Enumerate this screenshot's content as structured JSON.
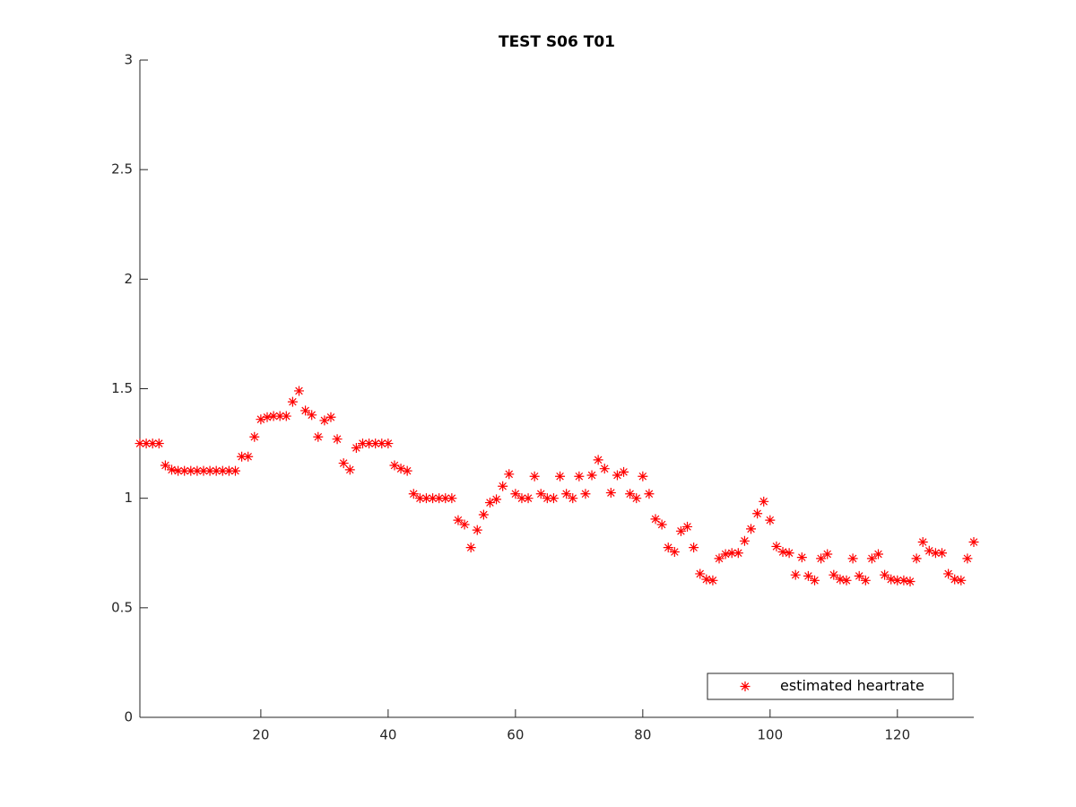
{
  "chart_data": {
    "type": "scatter",
    "title": "TEST S06 T01",
    "legend": "southeast",
    "box": false,
    "xlim": [
      1,
      132
    ],
    "xticks": [
      20,
      40,
      60,
      80,
      100,
      120
    ],
    "ylim": [
      0,
      3
    ],
    "yticks": [
      0,
      0.5,
      1,
      1.5,
      2,
      2.5,
      3
    ],
    "x": [
      1,
      2,
      3,
      4,
      5,
      6,
      7,
      8,
      9,
      10,
      11,
      12,
      13,
      14,
      15,
      16,
      17,
      18,
      19,
      20,
      21,
      22,
      23,
      24,
      25,
      26,
      27,
      28,
      29,
      30,
      31,
      32,
      33,
      34,
      35,
      36,
      37,
      38,
      39,
      40,
      41,
      42,
      43,
      44,
      45,
      46,
      47,
      48,
      49,
      50,
      51,
      52,
      53,
      54,
      55,
      56,
      57,
      58,
      59,
      60,
      61,
      62,
      63,
      64,
      65,
      66,
      67,
      68,
      69,
      70,
      71,
      72,
      73,
      74,
      75,
      76,
      77,
      78,
      79,
      80,
      81,
      82,
      83,
      84,
      85,
      86,
      87,
      88,
      89,
      90,
      91,
      92,
      93,
      94,
      95,
      96,
      97,
      98,
      99,
      100,
      101,
      102,
      103,
      104,
      105,
      106,
      107,
      108,
      109,
      110,
      111,
      112,
      113,
      114,
      115,
      116,
      117,
      118,
      119,
      120,
      121,
      122,
      123,
      124,
      125,
      126,
      127,
      128,
      129,
      130,
      131,
      132
    ],
    "series": [
      {
        "name": "estimated heartrate",
        "color": "#ff0000",
        "marker": "asterisk",
        "values": [
          1.25,
          1.25,
          1.25,
          1.25,
          1.15,
          1.13,
          1.125,
          1.125,
          1.125,
          1.125,
          1.125,
          1.125,
          1.125,
          1.125,
          1.125,
          1.125,
          1.19,
          1.19,
          1.28,
          1.36,
          1.37,
          1.375,
          1.375,
          1.375,
          1.44,
          1.49,
          1.4,
          1.38,
          1.28,
          1.355,
          1.37,
          1.27,
          1.16,
          1.13,
          1.23,
          1.25,
          1.25,
          1.25,
          1.25,
          1.25,
          1.15,
          1.135,
          1.125,
          1.02,
          1.0,
          1.0,
          1.0,
          1.0,
          1.0,
          1.0,
          0.9,
          0.88,
          0.775,
          0.855,
          0.925,
          0.98,
          0.995,
          1.055,
          1.11,
          1.02,
          1.0,
          1.0,
          1.1,
          1.02,
          1.0,
          1.0,
          1.1,
          1.02,
          1.0,
          1.1,
          1.02,
          1.105,
          1.175,
          1.135,
          1.025,
          1.105,
          1.12,
          1.02,
          1.0,
          1.1,
          1.02,
          0.905,
          0.88,
          0.775,
          0.755,
          0.85,
          0.87,
          0.775,
          0.655,
          0.63,
          0.625,
          0.725,
          0.745,
          0.75,
          0.75,
          0.805,
          0.86,
          0.93,
          0.985,
          0.9,
          0.78,
          0.755,
          0.75,
          0.65,
          0.73,
          0.645,
          0.625,
          0.725,
          0.745,
          0.65,
          0.63,
          0.625,
          0.725,
          0.645,
          0.625,
          0.725,
          0.745,
          0.65,
          0.63,
          0.625,
          0.625,
          0.62,
          0.725,
          0.8,
          0.76,
          0.75,
          0.75,
          0.655,
          0.63,
          0.625,
          0.725,
          0.8
        ]
      }
    ]
  }
}
